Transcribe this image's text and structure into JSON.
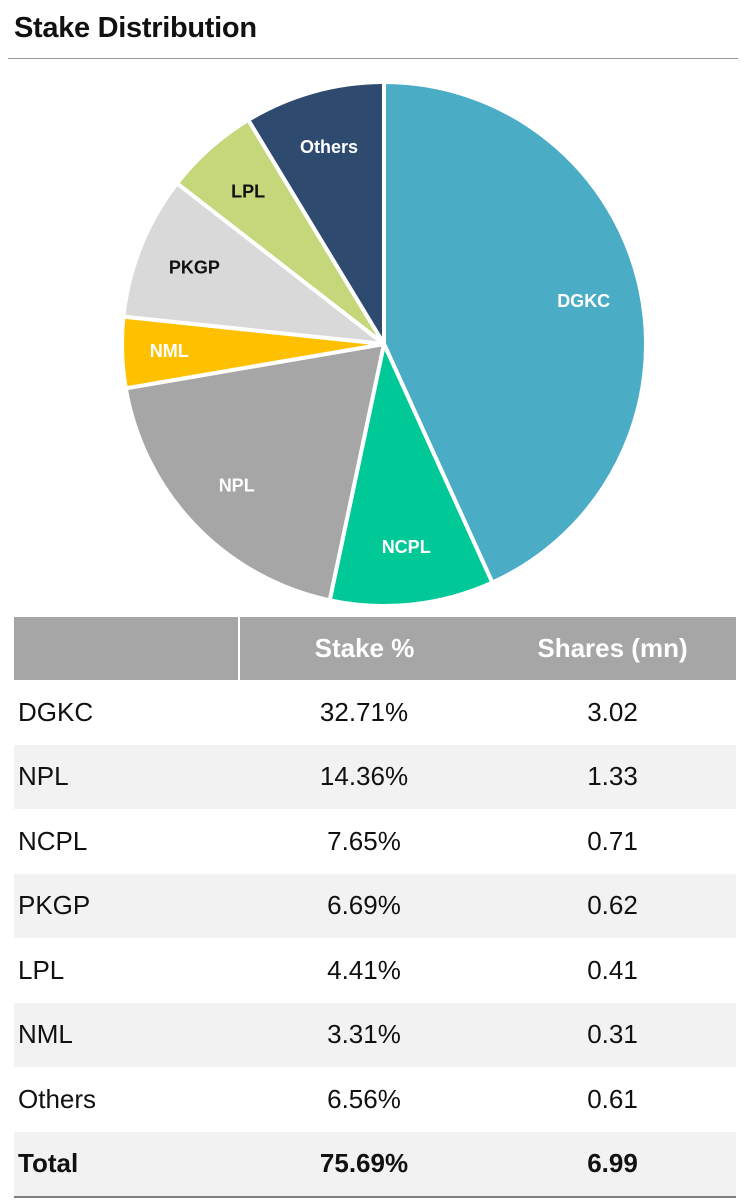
{
  "title": "Stake Distribution",
  "chart_data": {
    "type": "pie",
    "title": "Stake Distribution",
    "start_angle_deg": 0,
    "direction": "clockwise",
    "slices": [
      {
        "label": "DGKC",
        "value": 32.71,
        "color": "#4bacc6",
        "label_color": "#ffffff"
      },
      {
        "label": "NCPL",
        "value": 7.65,
        "color": "#00c896",
        "label_color": "#ffffff"
      },
      {
        "label": "NPL",
        "value": 14.36,
        "color": "#a6a6a6",
        "label_color": "#ffffff"
      },
      {
        "label": "NML",
        "value": 3.31,
        "color": "#ffc000",
        "label_color": "#ffffff"
      },
      {
        "label": "PKGP",
        "value": 6.69,
        "color": "#d9d9d9",
        "label_color": "#111111"
      },
      {
        "label": "LPL",
        "value": 4.41,
        "color": "#c4d77a",
        "label_color": "#111111"
      },
      {
        "label": "Others",
        "value": 6.56,
        "color": "#2e4a6e",
        "label_color": "#ffffff"
      }
    ]
  },
  "table": {
    "headers": [
      "",
      "Stake %",
      "Shares (mn)"
    ],
    "rows": [
      {
        "name": "DGKC",
        "stake": "32.71%",
        "shares": "3.02"
      },
      {
        "name": "NPL",
        "stake": "14.36%",
        "shares": "1.33"
      },
      {
        "name": "NCPL",
        "stake": "7.65%",
        "shares": "0.71"
      },
      {
        "name": "PKGP",
        "stake": "6.69%",
        "shares": "0.62"
      },
      {
        "name": "LPL",
        "stake": "4.41%",
        "shares": "0.41"
      },
      {
        "name": "NML",
        "stake": "3.31%",
        "shares": "0.31"
      },
      {
        "name": "Others",
        "stake": "6.56%",
        "shares": "0.61"
      }
    ],
    "total": {
      "name": "Total",
      "stake": "75.69%",
      "shares": "6.99"
    }
  }
}
